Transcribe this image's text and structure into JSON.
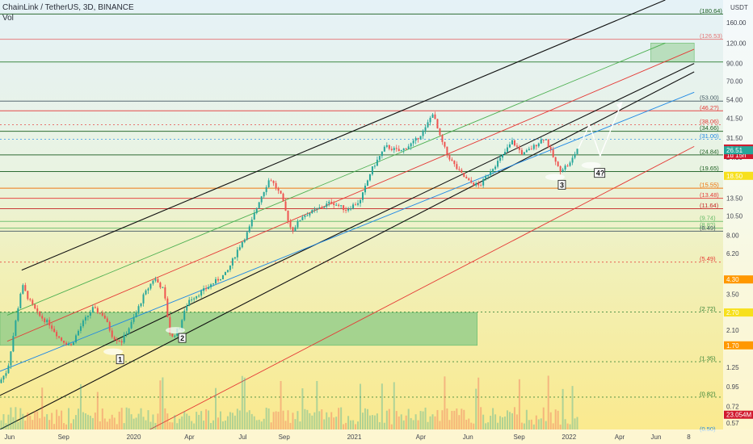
{
  "header": {
    "title": "ChainLink / TetherUS, 3D, BINANCE",
    "vol": "Vol"
  },
  "axis": {
    "currency": "USDT",
    "x_ticks": [
      "Jun",
      "Sep",
      "2020",
      "Apr",
      "Jul",
      "Sep",
      "2021",
      "Apr",
      "Jun",
      "Sep",
      "2022",
      "Apr",
      "Jun",
      "8"
    ],
    "y_ticks": [
      {
        "label": "160.00",
        "v": 160
      },
      {
        "label": "120.00",
        "v": 120
      },
      {
        "label": "90.00",
        "v": 90
      },
      {
        "label": "70.00",
        "v": 70
      },
      {
        "label": "54.00",
        "v": 54
      },
      {
        "label": "41.50",
        "v": 41.5
      },
      {
        "label": "31.50",
        "v": 31.5
      },
      {
        "label": "24.00",
        "v": 24
      },
      {
        "label": "13.50",
        "v": 13.5
      },
      {
        "label": "10.50",
        "v": 10.5
      },
      {
        "label": "8.00",
        "v": 8
      },
      {
        "label": "6.20",
        "v": 6.2
      },
      {
        "label": "3.50",
        "v": 3.5
      },
      {
        "label": "2.70",
        "v": 2.7
      },
      {
        "label": "2.10",
        "v": 2.1
      },
      {
        "label": "1.25",
        "v": 1.25
      },
      {
        "label": "0.95",
        "v": 0.95
      },
      {
        "label": "0.72",
        "v": 0.72
      },
      {
        "label": "0.57",
        "v": 0.57
      }
    ]
  },
  "price_tags": [
    {
      "label": "27.16",
      "sub": "1d 15h",
      "v": 27.16,
      "color": "#d1192e"
    },
    {
      "label": "26.51",
      "v": 26.51,
      "color": "#26a69a"
    },
    {
      "label": "18.50",
      "v": 18.5,
      "color": "#f7e01d"
    },
    {
      "label": "4.30",
      "v": 4.3,
      "color": "#ff9800"
    },
    {
      "label": "2.70",
      "v": 2.7,
      "color": "#f7e01d"
    },
    {
      "label": "1.70",
      "v": 1.7,
      "color": "#ff9800"
    },
    {
      "label": "23.054M",
      "v": 0.64,
      "color": "#d1192e"
    }
  ],
  "levels": [
    {
      "label": "(180.64)",
      "v": 180.64,
      "color": "#1b5e20",
      "dash": false,
      "full": true
    },
    {
      "label": "(126.53)",
      "v": 126.53,
      "color": "#e57373",
      "dash": false,
      "full": true
    },
    {
      "label": "",
      "v": 92,
      "color": "#2e7d32",
      "dash": false,
      "full": true
    },
    {
      "label": "(53.00)",
      "v": 53.0,
      "color": "#455a64",
      "dash": false,
      "full": true
    },
    {
      "label": "(46.2?)",
      "v": 46.2,
      "color": "#e53935",
      "dash": false,
      "full": true
    },
    {
      "label": "(38.06)",
      "v": 38.06,
      "color": "#e53935",
      "dash": true,
      "full": false
    },
    {
      "label": "(34.66)",
      "v": 34.66,
      "color": "#1b5e20",
      "dash": false,
      "full": true
    },
    {
      "label": "(31.00)",
      "v": 31.0,
      "color": "#1e88e5",
      "dash": true,
      "full": false
    },
    {
      "label": "(24.84)",
      "v": 24.84,
      "color": "#1b5e20",
      "dash": false,
      "full": true
    },
    {
      "label": "(19.65)",
      "v": 19.65,
      "color": "#1b5e20",
      "dash": false,
      "full": true
    },
    {
      "label": "(15.55)",
      "v": 15.55,
      "color": "#ef6c00",
      "dash": false,
      "full": true
    },
    {
      "label": "(13.48)",
      "v": 13.48,
      "color": "#e53935",
      "dash": false,
      "full": true
    },
    {
      "label": "(11.64)",
      "v": 11.64,
      "color": "#c62828",
      "dash": false,
      "full": true
    },
    {
      "label": "(9.74)",
      "v": 9.74,
      "color": "#66bb6a",
      "dash": false,
      "full": true
    },
    {
      "label": "(8.8?)",
      "v": 8.85,
      "color": "#66bb6a",
      "dash": false,
      "full": true
    },
    {
      "label": "(8.49)",
      "v": 8.49,
      "color": "#455a64",
      "dash": false,
      "full": true
    },
    {
      "label": "(5.49)",
      "v": 5.49,
      "color": "#e53935",
      "dash": true,
      "full": false
    },
    {
      "label": "(2.72)",
      "v": 2.72,
      "color": "#2e7d32",
      "dash": true,
      "full": false
    },
    {
      "label": "(1.35)",
      "v": 1.35,
      "color": "#2e7d32",
      "dash": true,
      "full": false
    },
    {
      "label": "(0.82)",
      "v": 0.82,
      "color": "#2e7d32",
      "dash": true,
      "full": false
    },
    {
      "label": "(0.50)",
      "v": 0.5,
      "color": "#1e88e5",
      "dash": true,
      "full": false
    }
  ],
  "annotations": [
    {
      "label": "1",
      "t": 0.161,
      "v": 1.42
    },
    {
      "label": "2",
      "t": 0.247,
      "v": 1.92
    },
    {
      "label": "3",
      "t": 0.772,
      "v": 16.6
    },
    {
      "label": "4?",
      "t": 0.822,
      "v": 19.6
    }
  ],
  "chart_data": {
    "type": "candlestick",
    "title": "ChainLink / TetherUS, 3D, BINANCE",
    "x_range": [
      "2019-06",
      "2022-08"
    ],
    "y_scale": "log",
    "ylim": [
      0.52,
      220
    ],
    "series": [
      {
        "name": "LINKUSDT",
        "values": [
          {
            "t": 0.0,
            "v": 1.0
          },
          {
            "t": 0.012,
            "v": 1.2
          },
          {
            "t": 0.022,
            "v": 2.2
          },
          {
            "t": 0.032,
            "v": 4.0
          },
          {
            "t": 0.042,
            "v": 3.2
          },
          {
            "t": 0.055,
            "v": 2.6
          },
          {
            "t": 0.07,
            "v": 2.3
          },
          {
            "t": 0.085,
            "v": 1.85
          },
          {
            "t": 0.1,
            "v": 1.7
          },
          {
            "t": 0.115,
            "v": 2.3
          },
          {
            "t": 0.13,
            "v": 2.85
          },
          {
            "t": 0.145,
            "v": 2.6
          },
          {
            "t": 0.158,
            "v": 1.9
          },
          {
            "t": 0.17,
            "v": 1.8
          },
          {
            "t": 0.185,
            "v": 2.4
          },
          {
            "t": 0.2,
            "v": 3.4
          },
          {
            "t": 0.215,
            "v": 4.4
          },
          {
            "t": 0.228,
            "v": 3.7
          },
          {
            "t": 0.238,
            "v": 1.85
          },
          {
            "t": 0.25,
            "v": 2.2
          },
          {
            "t": 0.262,
            "v": 3.2
          },
          {
            "t": 0.28,
            "v": 3.6
          },
          {
            "t": 0.3,
            "v": 4.2
          },
          {
            "t": 0.315,
            "v": 4.7
          },
          {
            "t": 0.33,
            "v": 6.5
          },
          {
            "t": 0.345,
            "v": 8.5
          },
          {
            "t": 0.36,
            "v": 13.0
          },
          {
            "t": 0.375,
            "v": 18.0
          },
          {
            "t": 0.39,
            "v": 14.0
          },
          {
            "t": 0.405,
            "v": 8.5
          },
          {
            "t": 0.42,
            "v": 10.5
          },
          {
            "t": 0.44,
            "v": 11.5
          },
          {
            "t": 0.46,
            "v": 12.8
          },
          {
            "t": 0.48,
            "v": 11.5
          },
          {
            "t": 0.5,
            "v": 13.0
          },
          {
            "t": 0.515,
            "v": 20.0
          },
          {
            "t": 0.535,
            "v": 28.0
          },
          {
            "t": 0.555,
            "v": 26.0
          },
          {
            "t": 0.575,
            "v": 30.0
          },
          {
            "t": 0.59,
            "v": 36.0
          },
          {
            "t": 0.6,
            "v": 45.0
          },
          {
            "t": 0.61,
            "v": 32.0
          },
          {
            "t": 0.62,
            "v": 25.0
          },
          {
            "t": 0.635,
            "v": 20.0
          },
          {
            "t": 0.65,
            "v": 17.0
          },
          {
            "t": 0.665,
            "v": 16.0
          },
          {
            "t": 0.68,
            "v": 20.0
          },
          {
            "t": 0.695,
            "v": 24.0
          },
          {
            "t": 0.71,
            "v": 30.0
          },
          {
            "t": 0.725,
            "v": 25.0
          },
          {
            "t": 0.74,
            "v": 28.0
          },
          {
            "t": 0.755,
            "v": 32.0
          },
          {
            "t": 0.765,
            "v": 25.0
          },
          {
            "t": 0.775,
            "v": 20.0
          },
          {
            "t": 0.79,
            "v": 22.0
          },
          {
            "t": 0.8,
            "v": 27.16
          }
        ]
      }
    ],
    "projection": [
      {
        "t": 0.8,
        "v": 27.16
      },
      {
        "t": 0.815,
        "v": 38.0
      },
      {
        "t": 0.83,
        "v": 24.5
      },
      {
        "t": 0.86,
        "v": 52.0
      }
    ],
    "channels": [
      {
        "color": "#111111",
        "t1": 0.03,
        "v1": 4.9,
        "t2": 0.92,
        "v2": 220
      },
      {
        "color": "#111111",
        "t1": 0.0,
        "v1": 0.52,
        "t2": 0.96,
        "v2": 80
      },
      {
        "color": "#111111",
        "t1": 0.0,
        "v1": 0.84,
        "t2": 0.96,
        "v2": 90
      },
      {
        "color": "#4caf50",
        "t1": 0.01,
        "v1": 2.6,
        "t2": 0.92,
        "v2": 120
      },
      {
        "color": "#e53935",
        "t1": 0.01,
        "v1": 1.8,
        "t2": 0.96,
        "v2": 110
      },
      {
        "color": "#1e88e5",
        "t1": 0.0,
        "v1": 1.18,
        "t2": 0.96,
        "v2": 60
      },
      {
        "color": "#e53935",
        "t1": 0.2,
        "v1": 0.5,
        "t2": 0.96,
        "v2": 28
      }
    ],
    "zones": [
      {
        "color": "#81c784",
        "t1": 0.0,
        "t2": 0.66,
        "v1": 1.7,
        "v2": 2.7
      },
      {
        "color": "#a5d6a7",
        "t1": 0.9,
        "t2": 0.96,
        "v1": 92,
        "v2": 120
      }
    ],
    "volume_peak": "23.054M"
  }
}
